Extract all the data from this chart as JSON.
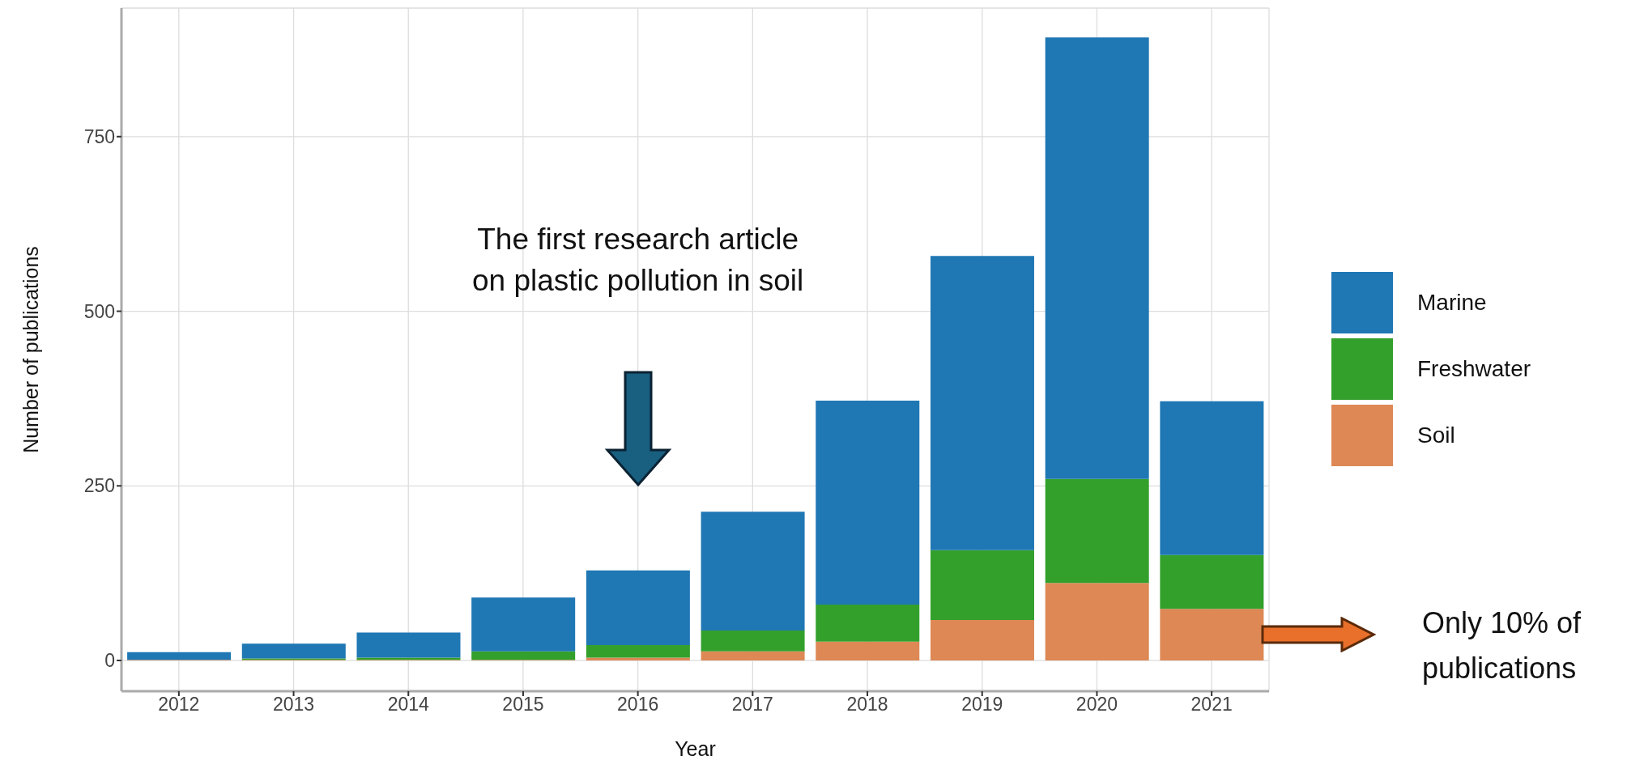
{
  "chart_data": {
    "type": "bar",
    "stacked": true,
    "xlabel": "Year",
    "ylabel": "Number of publications",
    "categories": [
      "2012",
      "2013",
      "2014",
      "2015",
      "2016",
      "2017",
      "2018",
      "2019",
      "2020",
      "2021"
    ],
    "series": [
      {
        "name": "Soil",
        "color": "#dd8855",
        "values": [
          1,
          1,
          1,
          1,
          4,
          13,
          27,
          58,
          111,
          74
        ]
      },
      {
        "name": "Freshwater",
        "color": "#33a02c",
        "values": [
          0,
          2,
          3,
          12,
          18,
          30,
          53,
          100,
          149,
          77
        ]
      },
      {
        "name": "Marine",
        "color": "#1f77b4",
        "values": [
          11,
          21,
          36,
          77,
          107,
          170,
          292,
          421,
          632,
          220
        ]
      }
    ],
    "ylim": [
      -44,
      934
    ],
    "yticks": [
      0,
      250,
      500,
      750
    ],
    "grid": true,
    "legend": "right",
    "annotations": [
      "The first research article on plastic pollution in soil",
      "Only 10% of publications"
    ]
  }
}
